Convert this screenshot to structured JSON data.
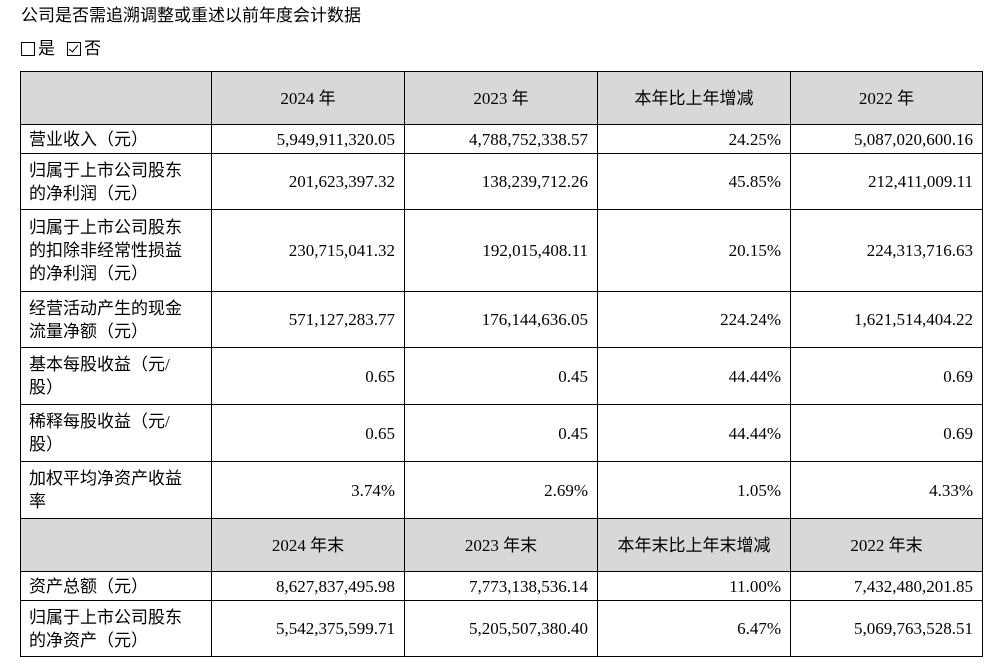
{
  "heading": "公司是否需追溯调整或重述以前年度会计数据",
  "options": {
    "yes_label": "是",
    "no_label": "否",
    "yes_checked": false,
    "no_checked": true
  },
  "table": {
    "header1": [
      "",
      "2024 年",
      "2023 年",
      "本年比上年增减",
      "2022 年"
    ],
    "rows1": [
      {
        "label": [
          "营业收入（元）"
        ],
        "values": [
          "5,949,911,320.05",
          "4,788,752,338.57",
          "24.25%",
          "5,087,020,600.16"
        ]
      },
      {
        "label": [
          "归属于上市公司股东",
          "的净利润（元）"
        ],
        "values": [
          "201,623,397.32",
          "138,239,712.26",
          "45.85%",
          "212,411,009.11"
        ]
      },
      {
        "label": [
          "归属于上市公司股东",
          "的扣除非经常性损益",
          "的净利润（元）"
        ],
        "values": [
          "230,715,041.32",
          "192,015,408.11",
          "20.15%",
          "224,313,716.63"
        ]
      },
      {
        "label": [
          "经营活动产生的现金",
          "流量净额（元）"
        ],
        "values": [
          "571,127,283.77",
          "176,144,636.05",
          "224.24%",
          "1,621,514,404.22"
        ]
      },
      {
        "label": [
          "基本每股收益（元/",
          "股）"
        ],
        "values": [
          "0.65",
          "0.45",
          "44.44%",
          "0.69"
        ]
      },
      {
        "label": [
          "稀释每股收益（元/",
          "股）"
        ],
        "values": [
          "0.65",
          "0.45",
          "44.44%",
          "0.69"
        ]
      },
      {
        "label": [
          "加权平均净资产收益",
          "率"
        ],
        "values": [
          "3.74%",
          "2.69%",
          "1.05%",
          "4.33%"
        ]
      }
    ],
    "header2": [
      "",
      "2024 年末",
      "2023 年末",
      "本年末比上年末增减",
      "2022 年末"
    ],
    "rows2": [
      {
        "label": [
          "资产总额（元）"
        ],
        "values": [
          "8,627,837,495.98",
          "7,773,138,536.14",
          "11.00%",
          "7,432,480,201.85"
        ]
      },
      {
        "label": [
          "归属于上市公司股东",
          "的净资产（元）"
        ],
        "values": [
          "5,542,375,599.71",
          "5,205,507,380.40",
          "6.47%",
          "5,069,763,528.51"
        ]
      }
    ]
  },
  "colors": {
    "header_bg": "#d8d8d8",
    "border": "#000000",
    "text": "#000000"
  }
}
